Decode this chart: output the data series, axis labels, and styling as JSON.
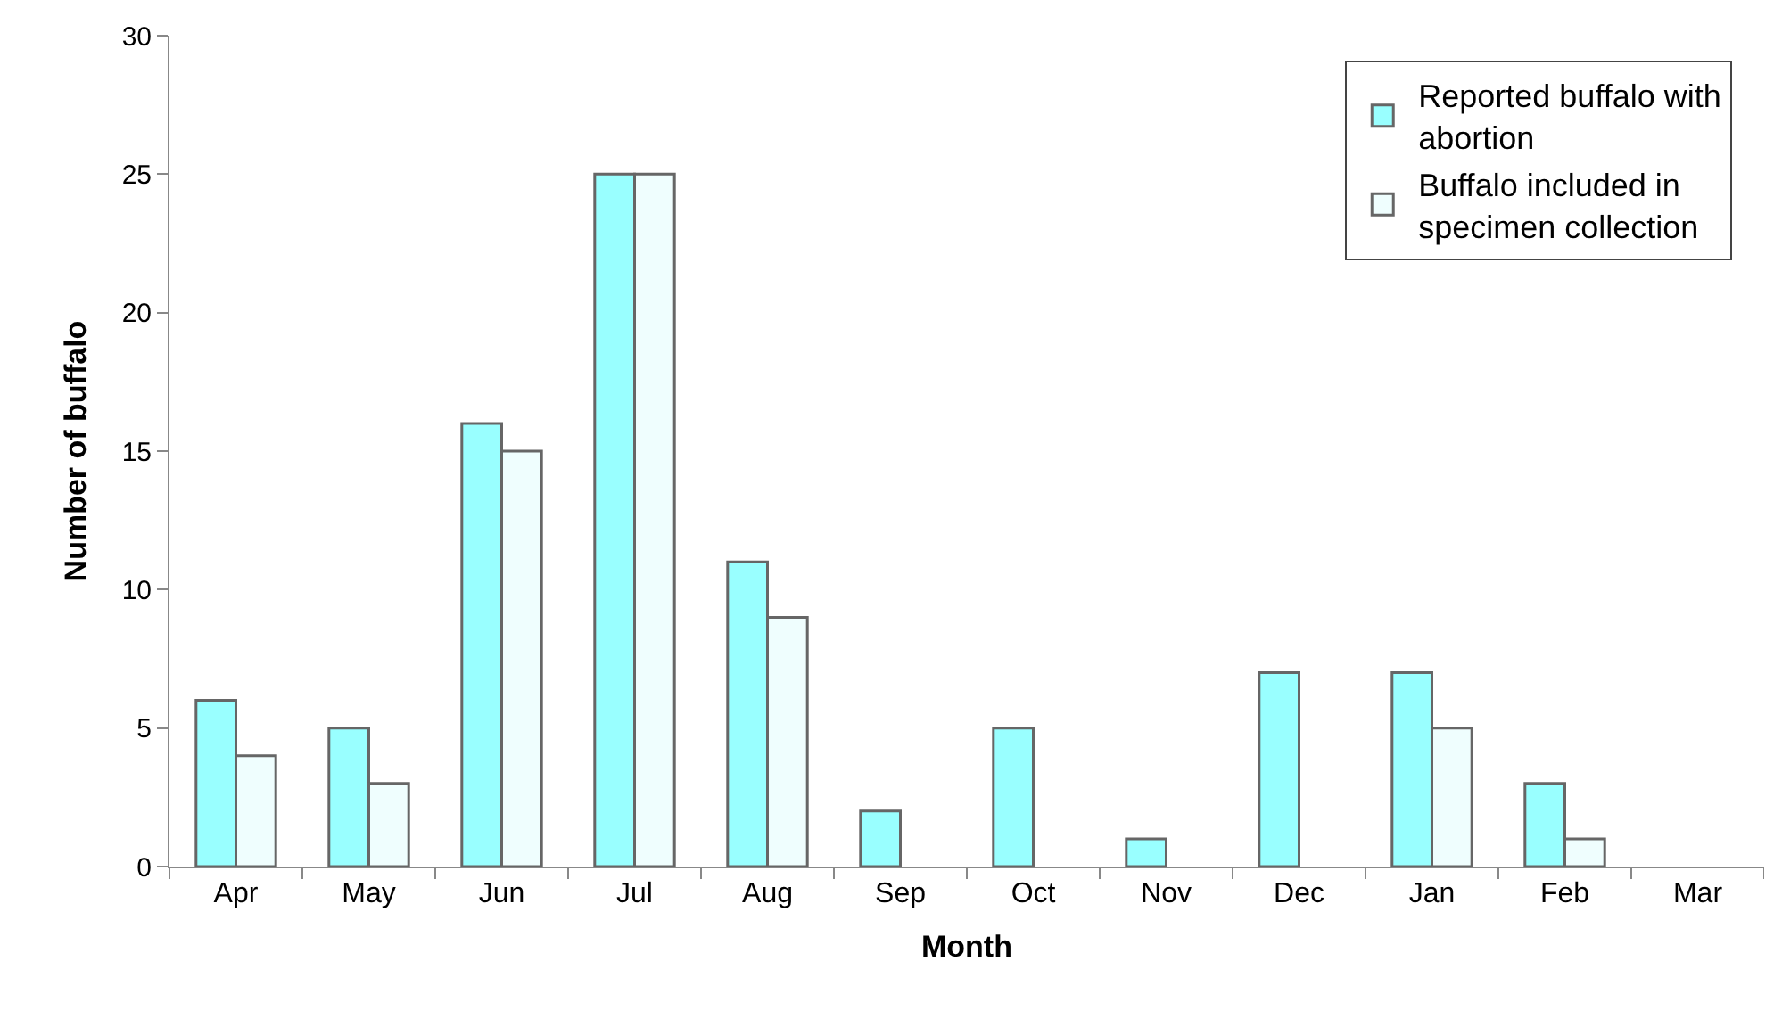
{
  "chart_data": {
    "type": "bar",
    "xlabel": "Month",
    "ylabel": "Number of buffalo",
    "categories": [
      "Apr",
      "May",
      "Jun",
      "Jul",
      "Aug",
      "Sep",
      "Oct",
      "Nov",
      "Dec",
      "Jan",
      "Feb",
      "Mar"
    ],
    "series": [
      {
        "name": "Reported buffalo with abortion",
        "color": "#99ffff",
        "values": [
          6,
          5,
          16,
          25,
          11,
          2,
          5,
          1,
          7,
          7,
          3,
          null
        ]
      },
      {
        "name": "Buffalo included in specimen collection",
        "color": "#effefe",
        "values": [
          4,
          3,
          15,
          25,
          9,
          null,
          null,
          null,
          null,
          5,
          1,
          null
        ]
      }
    ],
    "ylim": [
      0,
      30
    ],
    "yticks": [
      0,
      5,
      10,
      15,
      20,
      25,
      30
    ],
    "legend": "top right"
  }
}
